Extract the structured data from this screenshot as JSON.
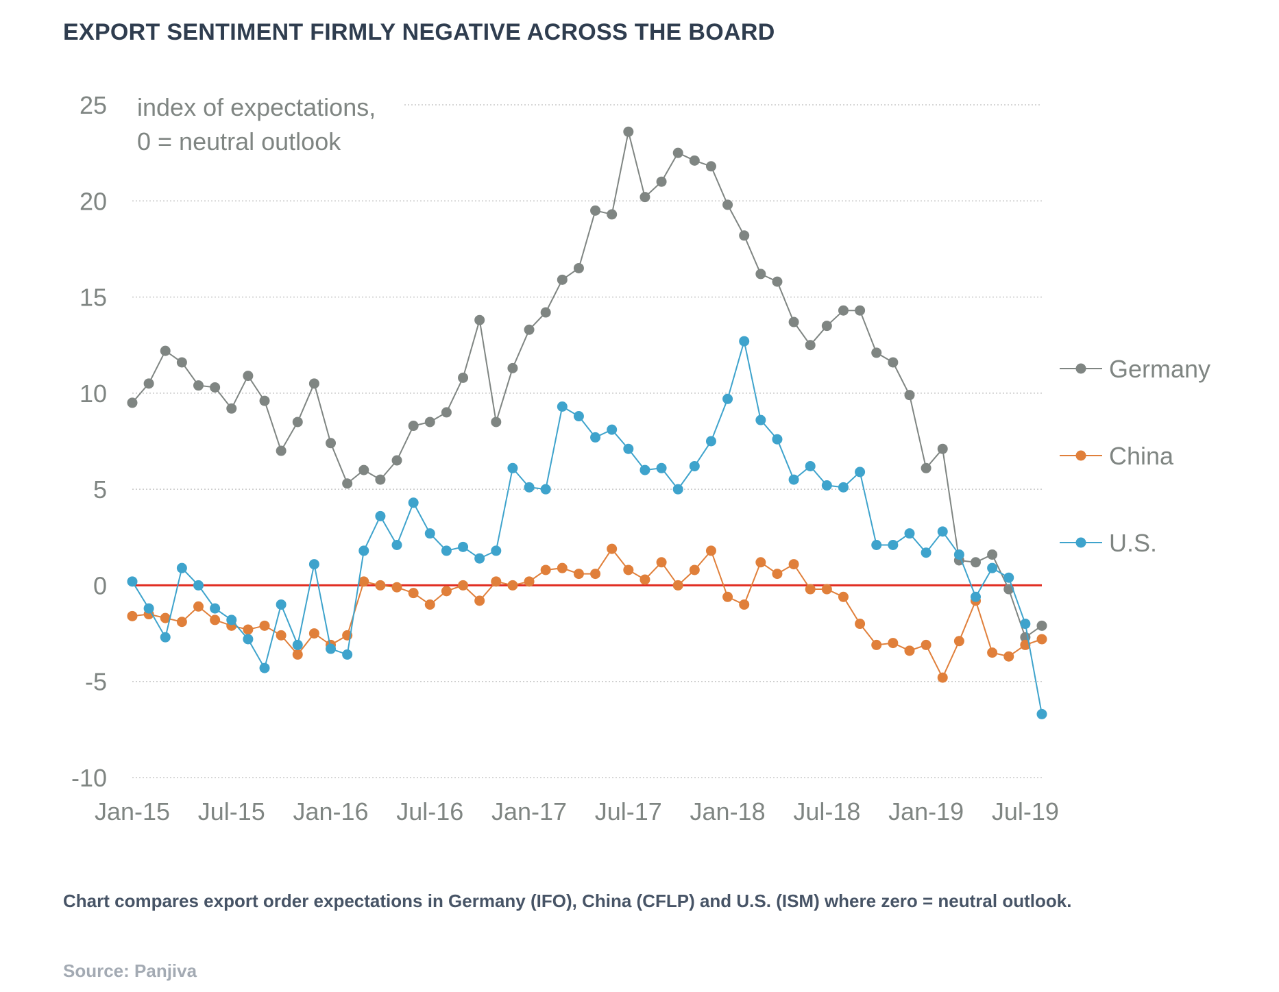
{
  "header": {
    "title": "EXPORT SENTIMENT FIRMLY NEGATIVE ACROSS THE BOARD"
  },
  "footer": {
    "caption": "Chart compares export order expectations in Germany (IFO), China (CFLP) and U.S. (ISM) where zero = neutral outlook.",
    "source": "Source: Panjiva"
  },
  "colors": {
    "germany": "#7f8582",
    "china": "#e07f3a",
    "us": "#3ea3cc",
    "zero_line": "#e02b1f",
    "grid": "#c8c8c8",
    "text": "#7f8582"
  },
  "chart_data": {
    "type": "line",
    "annotation": [
      "index of expectations,",
      "0 = neutral outlook"
    ],
    "ylim": [
      -10,
      25
    ],
    "yticks": [
      25,
      20,
      15,
      10,
      5,
      0,
      -5,
      -10
    ],
    "x_tick_labels": [
      "Jan-15",
      "Jul-15",
      "Jan-16",
      "Jul-16",
      "Jan-17",
      "Jul-17",
      "Jan-18",
      "Jul-18",
      "Jan-19",
      "Jul-19"
    ],
    "x": [
      "2015-01",
      "2015-02",
      "2015-03",
      "2015-04",
      "2015-05",
      "2015-06",
      "2015-07",
      "2015-08",
      "2015-09",
      "2015-10",
      "2015-11",
      "2015-12",
      "2016-01",
      "2016-02",
      "2016-03",
      "2016-04",
      "2016-05",
      "2016-06",
      "2016-07",
      "2016-08",
      "2016-09",
      "2016-10",
      "2016-11",
      "2016-12",
      "2017-01",
      "2017-02",
      "2017-03",
      "2017-04",
      "2017-05",
      "2017-06",
      "2017-07",
      "2017-08",
      "2017-09",
      "2017-10",
      "2017-11",
      "2017-12",
      "2018-01",
      "2018-02",
      "2018-03",
      "2018-04",
      "2018-05",
      "2018-06",
      "2018-07",
      "2018-08",
      "2018-09",
      "2018-10",
      "2018-11",
      "2018-12",
      "2019-01",
      "2019-02",
      "2019-03",
      "2019-04",
      "2019-05",
      "2019-06",
      "2019-07",
      "2019-08"
    ],
    "legend_position": "right",
    "reference_line": 0,
    "series": [
      {
        "name": "Germany",
        "color": "#7f8582",
        "values": [
          9.5,
          10.5,
          12.2,
          11.6,
          10.4,
          10.3,
          9.2,
          10.9,
          9.6,
          7.0,
          8.5,
          10.5,
          7.4,
          5.3,
          6.0,
          5.5,
          6.5,
          8.3,
          8.5,
          9.0,
          10.8,
          13.8,
          8.5,
          11.3,
          13.3,
          14.2,
          15.9,
          16.5,
          19.5,
          19.3,
          23.6,
          20.2,
          21.0,
          22.5,
          22.1,
          21.8,
          19.8,
          18.2,
          16.2,
          15.8,
          13.7,
          12.5,
          13.5,
          14.3,
          14.3,
          12.1,
          11.6,
          9.9,
          6.1,
          7.1,
          1.3,
          1.2,
          1.6,
          -0.2,
          -2.7,
          -2.1
        ]
      },
      {
        "name": "China",
        "color": "#e07f3a",
        "values": [
          -1.6,
          -1.5,
          -1.7,
          -1.9,
          -1.1,
          -1.8,
          -2.1,
          -2.3,
          -2.1,
          -2.6,
          -3.6,
          -2.5,
          -3.1,
          -2.6,
          0.2,
          0.0,
          -0.1,
          -0.4,
          -1.0,
          -0.3,
          0.0,
          -0.8,
          0.2,
          0.0,
          0.2,
          0.8,
          0.9,
          0.6,
          0.6,
          1.9,
          0.8,
          0.3,
          1.2,
          0.0,
          0.8,
          1.8,
          -0.6,
          -1.0,
          1.2,
          0.6,
          1.1,
          -0.2,
          -0.2,
          -0.6,
          -2.0,
          -3.1,
          -3.0,
          -3.4,
          -3.1,
          -4.8,
          -2.9,
          -0.8,
          -3.5,
          -3.7,
          -3.1,
          -2.8
        ]
      },
      {
        "name": "U.S.",
        "color": "#3ea3cc",
        "values": [
          0.2,
          -1.2,
          -2.7,
          0.9,
          0.0,
          -1.2,
          -1.8,
          -2.8,
          -4.3,
          -1.0,
          -3.1,
          1.1,
          -3.3,
          -3.6,
          1.8,
          3.6,
          2.1,
          4.3,
          2.7,
          1.8,
          2.0,
          1.4,
          1.8,
          6.1,
          5.1,
          5.0,
          9.3,
          8.8,
          7.7,
          8.1,
          7.1,
          6.0,
          6.1,
          5.0,
          6.2,
          7.5,
          9.7,
          12.7,
          8.6,
          7.6,
          5.5,
          6.2,
          5.2,
          5.1,
          5.9,
          2.1,
          2.1,
          2.7,
          1.7,
          2.8,
          1.6,
          -0.6,
          0.9,
          0.4,
          -2.0,
          -6.7
        ]
      }
    ]
  }
}
